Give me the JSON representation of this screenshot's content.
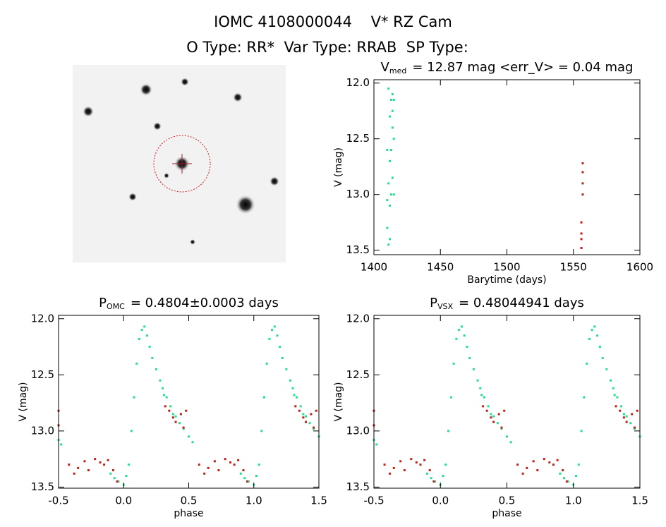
{
  "header": {
    "title": "IOMC 4108000044    V* RZ Cam",
    "subtitle": "O Type: RR*  Var Type: RRAB  SP Type:"
  },
  "chart_data": [
    {
      "type": "scatter",
      "title": {
        "main": "V",
        "sub": "med",
        "rest": "= 12.87 mag <err_V> = 0.04 mag"
      },
      "x_label": "Barytime (days)",
      "y_label": "V (mag)",
      "xlim": [
        1400,
        1600
      ],
      "xticks": [
        1400,
        1450,
        1500,
        1550,
        1600
      ],
      "ylim": [
        11.97,
        13.54
      ],
      "y_inverted": true,
      "yticks": [
        {
          "value": 12,
          "label": "12.0"
        },
        12.5,
        {
          "value": 13,
          "label": "13.0"
        },
        13.5
      ],
      "series": [
        {
          "color": "#22e08a",
          "x": [
            1410,
            1410,
            1411,
            1411,
            1411,
            1412,
            1412,
            1412,
            1413,
            1413,
            1413,
            1414,
            1414,
            1414,
            1415,
            1415,
            1415,
            1410,
            1412,
            1414
          ],
          "y": [
            12.6,
            13.3,
            12.05,
            12.9,
            13.45,
            12.7,
            13.1,
            13.4,
            12.15,
            12.6,
            13.0,
            12.1,
            12.4,
            12.85,
            12.15,
            12.5,
            13.0,
            13.05,
            12.3,
            12.25
          ]
        },
        {
          "color": "#c0201a",
          "x": [
            1556,
            1556,
            1556,
            1557,
            1557,
            1557,
            1557,
            1556
          ],
          "y": [
            13.25,
            13.4,
            13.48,
            12.72,
            12.9,
            13.0,
            12.8,
            13.35
          ]
        }
      ]
    },
    {
      "type": "scatter",
      "title": {
        "main": "P",
        "sub": "OMC",
        "rest": "= 0.4804±0.0003 days"
      },
      "x_label": "phase",
      "y_label": "V (mag)",
      "xlim": [
        -0.5,
        1.5
      ],
      "xticks": [
        -0.5,
        {
          "value": 0,
          "label": "0.0"
        },
        0.5,
        {
          "value": 1,
          "label": "1.0"
        },
        1.5
      ],
      "ylim": [
        11.97,
        13.51
      ],
      "y_inverted": true,
      "yticks": [
        {
          "value": 12,
          "label": "12.0"
        },
        12.5,
        {
          "value": 13,
          "label": "13.0"
        },
        13.5
      ],
      "series": [
        {
          "color": "#22e08a",
          "x": [
            -0.5,
            -0.48,
            -0.1,
            -0.07,
            -0.04,
            0,
            0.02,
            0.04,
            0.06,
            0.08,
            0.1,
            0.12,
            0.14,
            0.16,
            0.18,
            0.2,
            0.22,
            0.25,
            0.28,
            0.3,
            0.31,
            0.33,
            0.36,
            0.38,
            0.4,
            0.43,
            0.46,
            0.5,
            0.53,
            0.9,
            0.93,
            0.96,
            1,
            1.02,
            1.04,
            1.06,
            1.08,
            1.1,
            1.12,
            1.14,
            1.16,
            1.18,
            1.2,
            1.22,
            1.25,
            1.28,
            1.3,
            1.31,
            1.33,
            1.36,
            1.38,
            1.4,
            1.43,
            1.46,
            1.5
          ],
          "y": [
            13.08,
            13.12,
            13.38,
            13.42,
            13.45,
            13.48,
            13.4,
            13.3,
            13.0,
            12.7,
            12.4,
            12.18,
            12.1,
            12.07,
            12.15,
            12.25,
            12.35,
            12.45,
            12.55,
            12.62,
            12.68,
            12.7,
            12.78,
            12.85,
            12.87,
            12.93,
            12.98,
            13.05,
            13.1,
            13.38,
            13.42,
            13.45,
            13.48,
            13.4,
            13.3,
            13.0,
            12.7,
            12.4,
            12.18,
            12.1,
            12.07,
            12.15,
            12.25,
            12.35,
            12.45,
            12.55,
            12.62,
            12.68,
            12.7,
            12.78,
            12.85,
            12.87,
            12.93,
            12.98,
            13.05
          ]
        },
        {
          "color": "#c0201a",
          "x": [
            -0.5,
            -0.5,
            -0.42,
            -0.38,
            -0.35,
            -0.3,
            -0.27,
            -0.22,
            -0.18,
            -0.15,
            -0.12,
            -0.08,
            -0.05,
            0.32,
            0.35,
            0.38,
            0.4,
            0.44,
            0.46,
            0.48,
            0.58,
            0.62,
            0.65,
            0.7,
            0.73,
            0.78,
            0.82,
            0.85,
            0.88,
            0.92,
            0.95,
            1.32,
            1.35,
            1.38,
            1.4,
            1.44,
            1.46,
            1.48
          ],
          "y": [
            12.82,
            12.95,
            13.3,
            13.38,
            13.33,
            13.27,
            13.35,
            13.25,
            13.28,
            13.3,
            13.26,
            13.35,
            13.45,
            12.78,
            12.82,
            12.88,
            12.92,
            12.85,
            12.97,
            12.82,
            13.3,
            13.38,
            13.33,
            13.27,
            13.35,
            13.25,
            13.28,
            13.3,
            13.26,
            13.35,
            13.45,
            12.78,
            12.82,
            12.88,
            12.92,
            12.85,
            12.97,
            12.82
          ]
        }
      ]
    },
    {
      "type": "scatter",
      "title": {
        "main": "P",
        "sub": "VSX",
        "rest": "= 0.48044941 days"
      },
      "x_label": "phase",
      "y_label": "V (mag)",
      "xlim": [
        -0.5,
        1.5
      ],
      "xticks": [
        -0.5,
        {
          "value": 0,
          "label": "0.0"
        },
        0.5,
        {
          "value": 1,
          "label": "1.0"
        },
        1.5
      ],
      "ylim": [
        11.97,
        13.51
      ],
      "y_inverted": true,
      "yticks": [
        {
          "value": 12,
          "label": "12.0"
        },
        12.5,
        {
          "value": 13,
          "label": "13.0"
        },
        13.5
      ],
      "series": [
        {
          "color": "#22e08a",
          "x": [
            -0.5,
            -0.48,
            -0.1,
            -0.07,
            -0.04,
            0,
            0.02,
            0.04,
            0.06,
            0.08,
            0.1,
            0.12,
            0.14,
            0.16,
            0.18,
            0.2,
            0.22,
            0.25,
            0.28,
            0.3,
            0.31,
            0.33,
            0.36,
            0.38,
            0.4,
            0.43,
            0.46,
            0.5,
            0.53,
            0.9,
            0.93,
            0.96,
            1,
            1.02,
            1.04,
            1.06,
            1.08,
            1.1,
            1.12,
            1.14,
            1.16,
            1.18,
            1.2,
            1.22,
            1.25,
            1.28,
            1.3,
            1.31,
            1.33,
            1.36,
            1.38,
            1.4,
            1.43,
            1.46,
            1.5
          ],
          "y": [
            13.08,
            13.12,
            13.38,
            13.42,
            13.45,
            13.48,
            13.4,
            13.3,
            13.0,
            12.7,
            12.4,
            12.18,
            12.1,
            12.07,
            12.15,
            12.25,
            12.35,
            12.45,
            12.55,
            12.62,
            12.68,
            12.7,
            12.78,
            12.85,
            12.87,
            12.93,
            12.98,
            13.05,
            13.1,
            13.38,
            13.42,
            13.45,
            13.48,
            13.4,
            13.3,
            13.0,
            12.7,
            12.4,
            12.18,
            12.1,
            12.07,
            12.15,
            12.25,
            12.35,
            12.45,
            12.55,
            12.62,
            12.68,
            12.7,
            12.78,
            12.85,
            12.87,
            12.93,
            12.98,
            13.05
          ]
        },
        {
          "color": "#c0201a",
          "x": [
            -0.5,
            -0.5,
            -0.42,
            -0.38,
            -0.35,
            -0.3,
            -0.27,
            -0.22,
            -0.18,
            -0.15,
            -0.12,
            -0.08,
            -0.05,
            0.32,
            0.35,
            0.38,
            0.4,
            0.44,
            0.46,
            0.48,
            0.58,
            0.62,
            0.65,
            0.7,
            0.73,
            0.78,
            0.82,
            0.85,
            0.88,
            0.92,
            0.95,
            1.32,
            1.35,
            1.38,
            1.4,
            1.44,
            1.46,
            1.48
          ],
          "y": [
            12.82,
            12.95,
            13.3,
            13.38,
            13.33,
            13.27,
            13.35,
            13.25,
            13.28,
            13.3,
            13.26,
            13.35,
            13.45,
            12.78,
            12.82,
            12.88,
            12.92,
            12.85,
            12.97,
            12.82,
            13.3,
            13.38,
            13.33,
            13.27,
            13.35,
            13.25,
            13.28,
            13.3,
            13.26,
            13.35,
            13.45,
            12.78,
            12.82,
            12.88,
            12.92,
            12.85,
            12.97,
            12.82
          ]
        }
      ]
    }
  ]
}
